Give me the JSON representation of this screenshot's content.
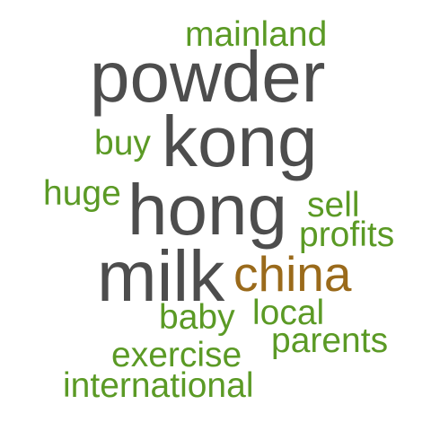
{
  "colors": {
    "large": "#4d4d4d",
    "accent": "#9a6a1b",
    "small": "#5b9a25"
  },
  "words": [
    {
      "text": "mainland",
      "color_role": "small"
    },
    {
      "text": "powder",
      "color_role": "large"
    },
    {
      "text": "buy",
      "color_role": "small"
    },
    {
      "text": "kong",
      "color_role": "large"
    },
    {
      "text": "huge",
      "color_role": "small"
    },
    {
      "text": "hong",
      "color_role": "large"
    },
    {
      "text": "sell",
      "color_role": "small"
    },
    {
      "text": "profits",
      "color_role": "small"
    },
    {
      "text": "milk",
      "color_role": "large"
    },
    {
      "text": "china",
      "color_role": "accent"
    },
    {
      "text": "baby",
      "color_role": "small"
    },
    {
      "text": "local",
      "color_role": "small"
    },
    {
      "text": "parents",
      "color_role": "small"
    },
    {
      "text": "exercise",
      "color_role": "small"
    },
    {
      "text": "international",
      "color_role": "small"
    }
  ]
}
